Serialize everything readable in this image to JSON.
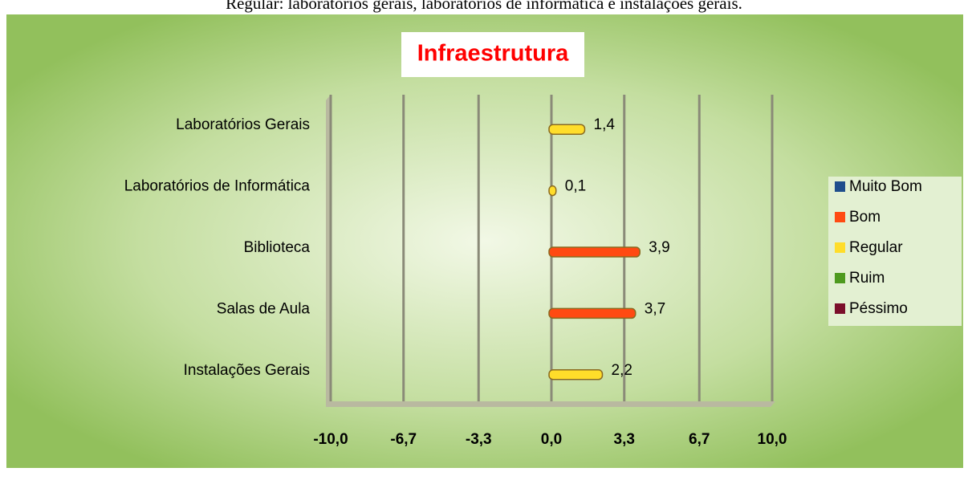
{
  "caption": "Regular: laboratórios gerais, laboratórios de informática e instalações gerais.",
  "chart_data": {
    "type": "hbar",
    "title": "Infraestrutura",
    "categories": [
      "Laboratórios Gerais",
      "Laboratórios de Informática",
      "Biblioteca",
      "Salas de Aula",
      "Instalações Gerais"
    ],
    "series": [
      {
        "name": "Muito Bom",
        "color": "#1f4e8c",
        "values": [
          null,
          null,
          null,
          null,
          null
        ]
      },
      {
        "name": "Bom",
        "color": "#ff4a12",
        "values": [
          null,
          null,
          3.9,
          3.7,
          null
        ],
        "value_labels": [
          null,
          null,
          "3,9",
          "3,7",
          null
        ]
      },
      {
        "name": "Regular",
        "color": "#ffdd2a",
        "values": [
          1.4,
          0.1,
          null,
          null,
          2.2
        ],
        "value_labels": [
          "1,4",
          "0,1",
          null,
          null,
          "2,2"
        ]
      },
      {
        "name": "Ruim",
        "color": "#4e9a1e",
        "values": [
          null,
          null,
          null,
          null,
          null
        ]
      },
      {
        "name": "Péssimo",
        "color": "#7b0f2a",
        "values": [
          null,
          null,
          null,
          null,
          null
        ]
      }
    ],
    "xlim": [
      -10,
      10
    ],
    "xticks": [
      {
        "value": -10,
        "label": "-10,0"
      },
      {
        "value": -6.7,
        "label": "-6,7"
      },
      {
        "value": -3.3,
        "label": "-3,3"
      },
      {
        "value": 0,
        "label": "0,0"
      },
      {
        "value": 3.3,
        "label": "3,3"
      },
      {
        "value": 6.7,
        "label": "6,7"
      },
      {
        "value": 10,
        "label": "10,0"
      }
    ],
    "grid": true,
    "legend": "right"
  }
}
